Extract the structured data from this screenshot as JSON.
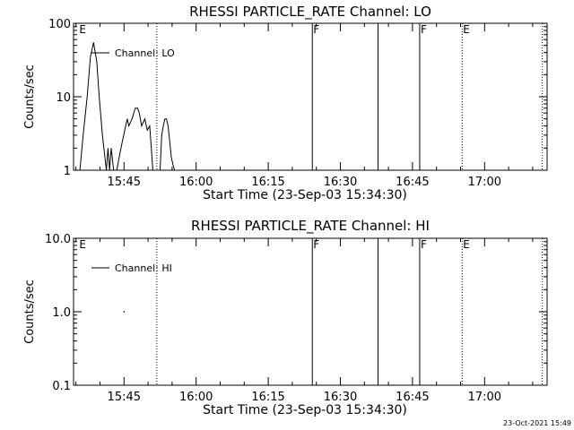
{
  "footer": {
    "timestamp": "23-Oct-2021 15:49"
  },
  "chart_data": [
    {
      "type": "line",
      "title": "RHESSI PARTICLE_RATE Channel: LO",
      "xlabel": "Start Time (23-Sep-03 15:34:30)",
      "ylabel": "Counts/sec",
      "yscale": "log",
      "ylim": [
        1,
        100
      ],
      "yticks": [
        1,
        10,
        100
      ],
      "ytick_labels": [
        "1",
        "10",
        "100"
      ],
      "xlim": [
        "15:34:30",
        "17:13:00"
      ],
      "xticks": [
        "15:45",
        "16:00",
        "16:15",
        "16:30",
        "16:45",
        "17:00"
      ],
      "legend": {
        "entries": [
          "Channel: LO"
        ],
        "position": "top-left"
      },
      "markers": [
        {
          "time": "15:35:30",
          "label": "E",
          "style": "none"
        },
        {
          "time": "15:51:50",
          "label": "",
          "style": "dotted"
        },
        {
          "time": "16:24:10",
          "label": "F",
          "style": "solid"
        },
        {
          "time": "16:37:50",
          "label": "",
          "style": "solid"
        },
        {
          "time": "16:46:30",
          "label": "F",
          "style": "solid"
        },
        {
          "time": "16:55:20",
          "label": "E",
          "style": "dotted"
        },
        {
          "time": "17:12:00",
          "label": "",
          "style": "dotted"
        }
      ],
      "series": [
        {
          "name": "Channel: LO",
          "segments": [
            {
              "x": [
                "15:35:50",
                "15:36:30",
                "15:37:20",
                "15:38:00",
                "15:38:40",
                "15:39:20",
                "15:39:50",
                "15:40:30",
                "15:41:20",
                "15:41:40",
                "15:42:00",
                "15:42:20",
                "15:42:50",
                "15:43:30"
              ],
              "y": [
                1.0,
                3.0,
                10.0,
                35.0,
                55.0,
                30.0,
                10.0,
                3.0,
                1.0,
                2.0,
                1.0,
                2.0,
                1.0,
                1.0
              ]
            },
            {
              "x": [
                "15:43:30",
                "15:44:00",
                "15:44:40",
                "15:45:20",
                "15:45:40",
                "15:46:00",
                "15:46:40",
                "15:47:20",
                "15:47:50",
                "15:48:10",
                "15:48:40",
                "15:49:20",
                "15:49:50",
                "15:50:20",
                "15:50:40",
                "15:51:00"
              ],
              "y": [
                1.0,
                1.5,
                2.5,
                4.0,
                5.0,
                4.0,
                5.0,
                7.0,
                7.0,
                6.0,
                4.0,
                5.0,
                3.5,
                4.0,
                2.0,
                1.0
              ]
            },
            {
              "x": [
                "15:52:30",
                "15:52:50",
                "15:53:10",
                "15:53:30",
                "15:53:50",
                "15:54:10",
                "15:54:30",
                "15:54:50",
                "15:55:10",
                "15:55:30"
              ],
              "y": [
                1.0,
                3.0,
                4.0,
                5.0,
                5.0,
                4.0,
                2.5,
                1.5,
                1.2,
                1.0
              ]
            }
          ]
        }
      ]
    },
    {
      "type": "line",
      "title": "RHESSI PARTICLE_RATE Channel: HI",
      "xlabel": "Start Time (23-Sep-03 15:34:30)",
      "ylabel": "Counts/sec",
      "yscale": "log",
      "ylim": [
        0.1,
        10
      ],
      "yticks": [
        0.1,
        1,
        10
      ],
      "ytick_labels": [
        "0.1",
        "1.0",
        "10.0"
      ],
      "xlim": [
        "15:34:30",
        "17:13:00"
      ],
      "xticks": [
        "15:45",
        "16:00",
        "16:15",
        "16:30",
        "16:45",
        "17:00"
      ],
      "legend": {
        "entries": [
          "Channel: HI"
        ],
        "position": "top-left"
      },
      "markers": [
        {
          "time": "15:35:30",
          "label": "E",
          "style": "none"
        },
        {
          "time": "15:51:50",
          "label": "",
          "style": "dotted"
        },
        {
          "time": "16:24:10",
          "label": "F",
          "style": "solid"
        },
        {
          "time": "16:37:50",
          "label": "",
          "style": "solid"
        },
        {
          "time": "16:46:30",
          "label": "F",
          "style": "solid"
        },
        {
          "time": "16:55:20",
          "label": "E",
          "style": "dotted"
        },
        {
          "time": "17:12:00",
          "label": "",
          "style": "dotted"
        }
      ],
      "series": [
        {
          "name": "Channel: HI",
          "points": [
            {
              "x": "15:45:00",
              "y": 1.0
            }
          ]
        }
      ]
    }
  ]
}
